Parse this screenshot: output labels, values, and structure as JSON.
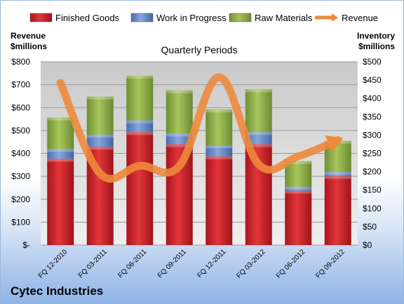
{
  "chart_data": {
    "type": "bar",
    "title": "Quarterly Periods",
    "company": "Cytec Industries",
    "left_axis_title": [
      "Revenue",
      "$millions"
    ],
    "right_axis_title": [
      "Inventory",
      "$millions"
    ],
    "categories": [
      "FQ 12-2010",
      "FQ 03-2011",
      "FQ 06-2011",
      "FQ 09-2011",
      "FQ 12-2011",
      "FQ 03-2012",
      "FQ 06-2012",
      "FQ 09-2012"
    ],
    "series": [
      {
        "name": "Finished Goods",
        "axis": "right",
        "stacked": true,
        "color": "#c8262b",
        "values": [
          235,
          268,
          308,
          275,
          242,
          275,
          148,
          188
        ]
      },
      {
        "name": "Work in Progress",
        "axis": "right",
        "stacked": true,
        "color": "#5f84c4",
        "values": [
          27,
          33,
          32,
          29,
          30,
          33,
          11,
          11
        ]
      },
      {
        "name": "Raw Materials",
        "axis": "right",
        "stacked": true,
        "color": "#8fb04a",
        "values": [
          86,
          104,
          122,
          118,
          98,
          117,
          70,
          85
        ]
      },
      {
        "name": "Revenue",
        "axis": "left",
        "type": "line",
        "color": "#ed8a3c",
        "values": [
          708,
          312,
          346,
          345,
          733,
          352,
          387,
          458
        ]
      }
    ],
    "left_ylim": [
      0,
      800
    ],
    "left_ticks": [
      "$-",
      "$100",
      "$200",
      "$300",
      "$400",
      "$500",
      "$600",
      "$700",
      "$800"
    ],
    "right_ylim": [
      0,
      500
    ],
    "right_ticks": [
      "$0",
      "$50",
      "$100",
      "$150",
      "$200",
      "$250",
      "$300",
      "$350",
      "$400",
      "$450",
      "$500"
    ],
    "grid": true,
    "legend_position": "top"
  }
}
